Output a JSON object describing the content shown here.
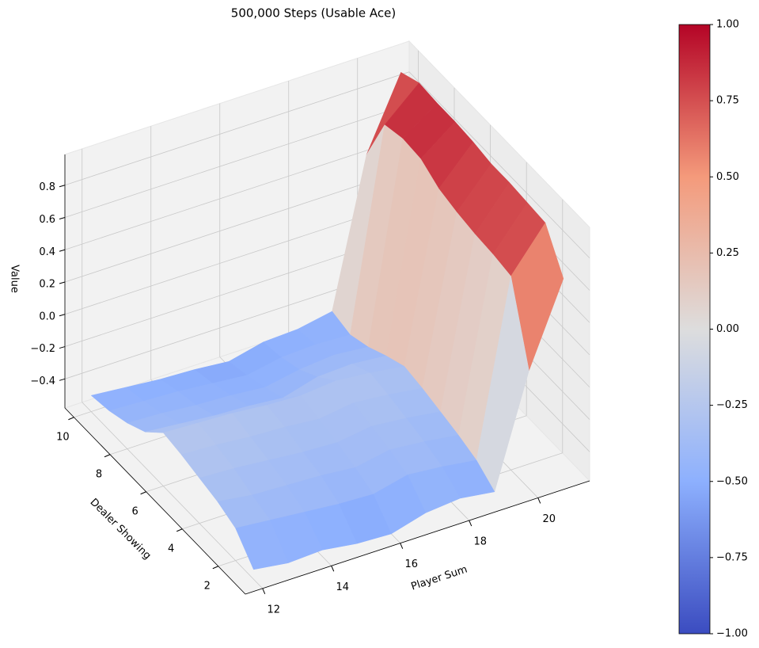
{
  "chart_data": {
    "type": "surface",
    "title": "500,000 Steps (Usable Ace)",
    "x_label": "Player Sum",
    "y_label": "Dealer Showing",
    "z_label": "Value",
    "x": [
      12,
      13,
      14,
      15,
      16,
      17,
      18,
      19,
      20,
      21
    ],
    "y": [
      1,
      2,
      3,
      4,
      5,
      6,
      7,
      8,
      9,
      10
    ],
    "z": [
      [
        -0.52,
        -0.38,
        -0.33,
        -0.3,
        -0.27,
        -0.25,
        -0.36,
        -0.42,
        -0.46,
        -0.48
      ],
      [
        -0.55,
        -0.4,
        -0.36,
        -0.31,
        -0.28,
        -0.26,
        -0.38,
        -0.43,
        -0.47,
        -0.5
      ],
      [
        -0.54,
        -0.42,
        -0.37,
        -0.33,
        -0.3,
        -0.27,
        -0.4,
        -0.45,
        -0.48,
        -0.52
      ],
      [
        -0.57,
        -0.44,
        -0.38,
        -0.35,
        -0.31,
        -0.29,
        -0.41,
        -0.46,
        -0.5,
        -0.53
      ],
      [
        -0.58,
        -0.45,
        -0.4,
        -0.36,
        -0.33,
        -0.3,
        -0.43,
        -0.48,
        -0.52,
        -0.55
      ],
      [
        -0.52,
        -0.4,
        -0.36,
        -0.33,
        -0.3,
        -0.28,
        -0.37,
        -0.44,
        -0.48,
        -0.5
      ],
      [
        -0.5,
        -0.42,
        -0.38,
        -0.35,
        -0.32,
        -0.3,
        -0.36,
        -0.42,
        -0.47,
        -0.49
      ],
      [
        -0.53,
        -0.45,
        -0.41,
        -0.38,
        -0.35,
        -0.33,
        -0.38,
        -0.44,
        -0.48,
        -0.45
      ],
      [
        0.15,
        0.62,
        0.64,
        0.65,
        0.67,
        0.7,
        0.77,
        0.78,
        0.75,
        0.45
      ],
      [
        0.65,
        0.88,
        0.89,
        0.9,
        0.9,
        0.92,
        0.93,
        0.93,
        0.94,
        0.89
      ]
    ],
    "xlim": [
      11.5,
      21.5
    ],
    "ylim": [
      0.5,
      10.5
    ],
    "zlim": [
      -0.58,
      0.99
    ],
    "xticks": [
      12,
      14,
      16,
      18,
      20
    ],
    "yticks": [
      2,
      4,
      6,
      8,
      10
    ],
    "zticks": [
      {
        "value": -0.4,
        "label": "−0.4"
      },
      {
        "value": -0.2,
        "label": "−0.2"
      },
      {
        "value": 0,
        "label": "0.0"
      },
      0.2,
      0.4,
      0.6,
      0.8
    ],
    "colormap": [
      "#3b4cc0",
      "#8db0fe",
      "#dddddd",
      "#f49a7b",
      "#b40426"
    ],
    "clim": [
      -1,
      1
    ],
    "colorbar_ticks": [
      {
        "value": 1,
        "label": "1.00"
      },
      {
        "value": 0.75,
        "label": "0.75"
      },
      {
        "value": 0.5,
        "label": "0.50"
      },
      {
        "value": 0.25,
        "label": "0.25"
      },
      {
        "value": 0,
        "label": "0.00"
      },
      {
        "value": -0.25,
        "label": "−0.25"
      },
      {
        "value": -0.5,
        "label": "−0.50"
      },
      {
        "value": -0.75,
        "label": "−0.75"
      },
      {
        "value": -1,
        "label": "−1.00"
      }
    ]
  }
}
